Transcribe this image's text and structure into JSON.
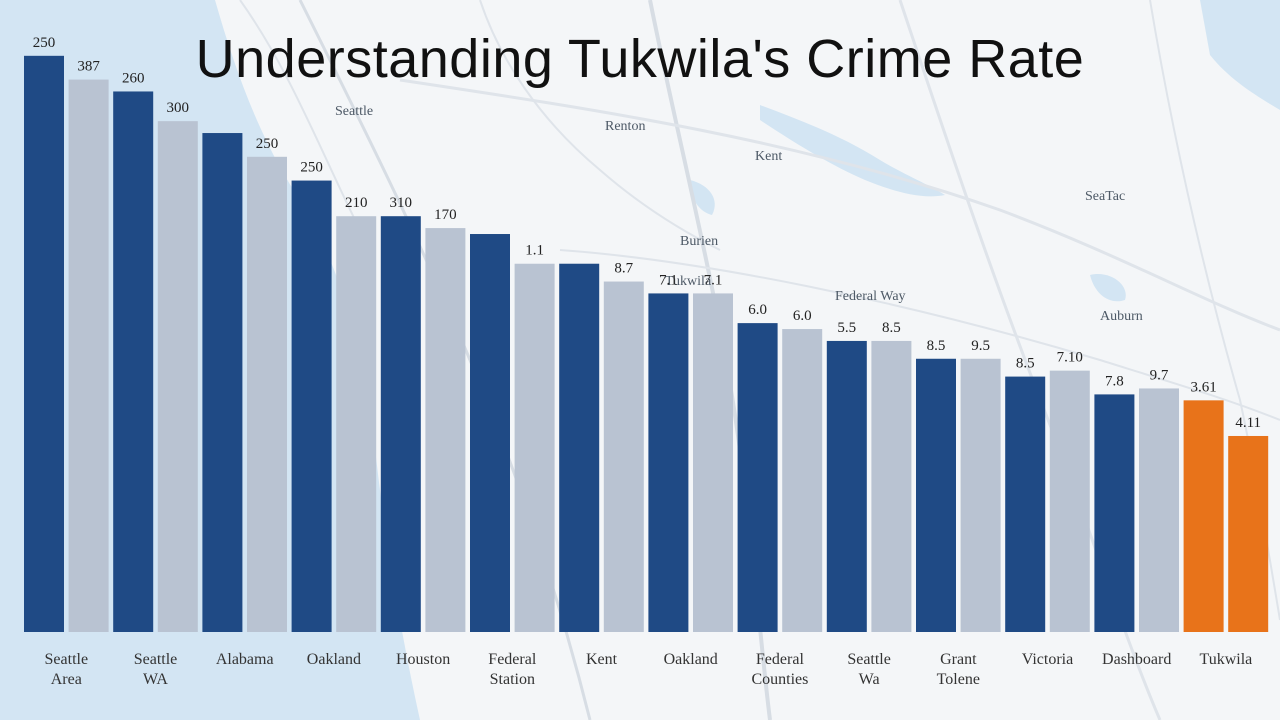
{
  "page": {
    "title": "Understanding Tukwila's Crime Rate"
  },
  "map_labels": [
    "Tukwila",
    "Seattle",
    "Renton",
    "Kent",
    "Burien",
    "SeaTac",
    "Federal Way",
    "Auburn"
  ],
  "colors": {
    "dark_blue": "#1f4a85",
    "light_gray": "#b9c3d2",
    "orange": "#e8731a",
    "water": "#cfe2f1",
    "road": "#d6dce3"
  },
  "chart_data": {
    "type": "bar",
    "title": "Understanding Tukwila's Crime Rate",
    "xlabel": "",
    "ylabel": "",
    "ylim": [
      0,
      100
    ],
    "grid": false,
    "legend": "none",
    "bars": [
      {
        "value": 97,
        "label": "250",
        "color": "dark_blue"
      },
      {
        "value": 93,
        "label": "387",
        "color": "light_gray"
      },
      {
        "value": 91,
        "label": "260",
        "color": "dark_blue"
      },
      {
        "value": 86,
        "label": "300",
        "color": "light_gray"
      },
      {
        "value": 84,
        "label": "",
        "color": "dark_blue"
      },
      {
        "value": 80,
        "label": "250",
        "color": "light_gray"
      },
      {
        "value": 76,
        "label": "250",
        "color": "dark_blue"
      },
      {
        "value": 70,
        "label": "210",
        "color": "light_gray"
      },
      {
        "value": 70,
        "label": "310",
        "color": "dark_blue"
      },
      {
        "value": 68,
        "label": "170",
        "color": "light_gray"
      },
      {
        "value": 67,
        "label": "",
        "color": "dark_blue"
      },
      {
        "value": 62,
        "label": "1.1",
        "color": "light_gray"
      },
      {
        "value": 62,
        "label": "",
        "color": "dark_blue"
      },
      {
        "value": 59,
        "label": "8.7",
        "color": "light_gray"
      },
      {
        "value": 57,
        "label": "7.1",
        "color": "dark_blue"
      },
      {
        "value": 57,
        "label": "7.1",
        "color": "light_gray"
      },
      {
        "value": 52,
        "label": "6.0",
        "color": "dark_blue"
      },
      {
        "value": 51,
        "label": "6.0",
        "color": "light_gray"
      },
      {
        "value": 49,
        "label": "5.5",
        "color": "dark_blue"
      },
      {
        "value": 49,
        "label": "8.5",
        "color": "light_gray"
      },
      {
        "value": 46,
        "label": "8.5",
        "color": "dark_blue"
      },
      {
        "value": 46,
        "label": "9.5",
        "color": "light_gray"
      },
      {
        "value": 43,
        "label": "8.5",
        "color": "dark_blue"
      },
      {
        "value": 44,
        "label": "7.10",
        "color": "light_gray"
      },
      {
        "value": 40,
        "label": "7.8",
        "color": "dark_blue"
      },
      {
        "value": 41,
        "label": "9.7",
        "color": "light_gray"
      },
      {
        "value": 39,
        "label": "3.61",
        "color": "orange"
      },
      {
        "value": 33,
        "label": "4.11",
        "color": "orange"
      }
    ],
    "categories": [
      {
        "line1": "Seattle",
        "line2": "Area"
      },
      {
        "line1": "Seattle",
        "line2": "WA"
      },
      {
        "line1": "Alabama",
        "line2": ""
      },
      {
        "line1": "Oakland",
        "line2": ""
      },
      {
        "line1": "Houston",
        "line2": ""
      },
      {
        "line1": "Federal",
        "line2": "Station"
      },
      {
        "line1": "Kent",
        "line2": ""
      },
      {
        "line1": "Oakland",
        "line2": ""
      },
      {
        "line1": "Federal",
        "line2": "Counties"
      },
      {
        "line1": "Seattle",
        "line2": "Wa"
      },
      {
        "line1": "Grant",
        "line2": "Tolene"
      },
      {
        "line1": "Victoria",
        "line2": ""
      },
      {
        "line1": "Dashboard",
        "line2": ""
      },
      {
        "line1": "Tukwila",
        "line2": ""
      }
    ]
  }
}
